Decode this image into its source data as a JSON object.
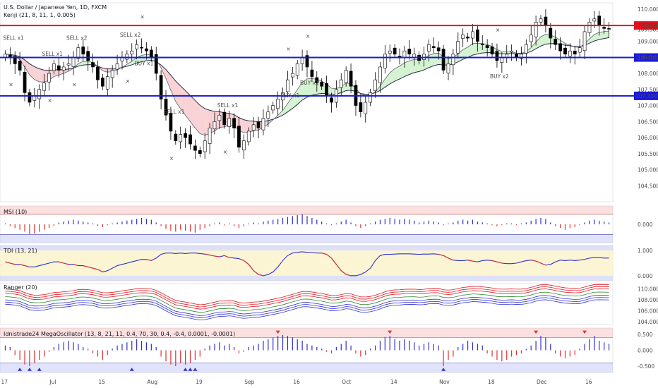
{
  "header": {
    "symbol_title": "U.S. Dollar / Japanese Yen, 1D, FXCM",
    "overlay_label": "Kenji (21, 8, 11, 1, 0.005)"
  },
  "colors": {
    "bull": "#ffffff",
    "bear": "#000000",
    "res_line": "#e0141e",
    "sup_line": "#1a19d6",
    "cloud_bull": "#c9f0c5",
    "cloud_bear": "#f6c7c9",
    "cloud_neutral": "#c8cdf0",
    "sell": "#e0141e",
    "buy": "#3a45c8"
  },
  "chart_data": [
    {
      "type": "candlestick",
      "title": "U.S. Dollar / Japanese Yen, 1D, FXCM",
      "ylim": [
        104.0,
        110.2
      ],
      "yticks": [
        "110.000",
        "109.500",
        "109.000",
        "108.500",
        "108.000",
        "107.500",
        "107.000",
        "106.500",
        "106.000",
        "105.500",
        "105.000",
        "104.500"
      ],
      "xticks": [
        {
          "i": 0,
          "label": "17"
        },
        {
          "i": 10,
          "label": "Jul"
        },
        {
          "i": 20,
          "label": "15"
        },
        {
          "i": 30,
          "label": "Aug"
        },
        {
          "i": 40,
          "label": "19"
        },
        {
          "i": 50,
          "label": "Sep"
        },
        {
          "i": 60,
          "label": "16"
        },
        {
          "i": 70,
          "label": "Oct"
        },
        {
          "i": 80,
          "label": "14"
        },
        {
          "i": 90,
          "label": "Nov"
        },
        {
          "i": 100,
          "label": "18"
        },
        {
          "i": 110,
          "label": "Dec"
        },
        {
          "i": 120,
          "label": "16"
        }
      ],
      "horizontal_levels": [
        {
          "value": 109.494,
          "label": "109.494",
          "kind": "resistance"
        },
        {
          "value": 108.495,
          "label": "108.495",
          "kind": "support"
        },
        {
          "value": 107.3,
          "label": "107.300",
          "kind": "support"
        }
      ],
      "last_price_label": "109.383",
      "closes": [
        108.6,
        108.5,
        108.3,
        108.1,
        107.4,
        107.1,
        107.3,
        107.5,
        107.7,
        108.0,
        108.3,
        108.1,
        108.2,
        108.3,
        108.5,
        108.8,
        108.6,
        108.4,
        108.2,
        107.8,
        107.6,
        107.9,
        108.1,
        108.3,
        108.5,
        108.6,
        108.7,
        108.9,
        108.8,
        108.7,
        108.5,
        108.0,
        107.2,
        106.7,
        106.2,
        105.9,
        106.1,
        106.0,
        105.8,
        105.6,
        105.5,
        105.9,
        106.3,
        106.5,
        106.7,
        106.4,
        106.6,
        106.3,
        105.7,
        105.9,
        106.2,
        106.4,
        106.3,
        106.6,
        106.8,
        107.0,
        107.2,
        107.4,
        107.8,
        108.0,
        108.3,
        108.5,
        108.2,
        107.9,
        107.7,
        107.6,
        107.3,
        107.1,
        107.5,
        107.8,
        108.1,
        107.6,
        107.0,
        106.8,
        107.1,
        107.4,
        107.8,
        108.2,
        108.6,
        108.7,
        108.6,
        108.5,
        108.7,
        108.6,
        108.6,
        108.4,
        108.6,
        108.9,
        108.8,
        108.7,
        108.1,
        108.3,
        108.6,
        109.0,
        109.2,
        109.1,
        109.3,
        109.0,
        108.9,
        108.8,
        108.6,
        108.4,
        108.5,
        108.6,
        108.7,
        108.5,
        108.6,
        108.9,
        109.2,
        109.6,
        109.7,
        109.5,
        109.1,
        108.9,
        108.7,
        108.6,
        108.7,
        108.6,
        108.8,
        109.3,
        109.6,
        109.7,
        109.5,
        109.4,
        109.38
      ],
      "signals": [
        {
          "i": 1,
          "text": "SELL x1",
          "kind": "sell"
        },
        {
          "i": 14,
          "text": "SELL x2",
          "kind": "sell"
        },
        {
          "i": 9,
          "text": "SELL x1",
          "kind": "sell"
        },
        {
          "i": 25,
          "text": "SELL x2",
          "kind": "sell"
        },
        {
          "i": 34,
          "text": "SELL x1",
          "kind": "sell"
        },
        {
          "i": 45,
          "text": "SELL x1",
          "kind": "sell"
        },
        {
          "i": 28,
          "text": "BUY x1",
          "kind": "buy"
        },
        {
          "i": 58,
          "text": "BUY x1",
          "kind": "buy"
        },
        {
          "i": 62,
          "text": "BUY x1",
          "kind": "buy"
        },
        {
          "i": 101,
          "text": "BUY x2",
          "kind": "buy"
        }
      ]
    },
    {
      "type": "histogram",
      "title": "MSI (10)",
      "ylim": [
        -1,
        1
      ],
      "yticks": [
        "0.000"
      ],
      "values": [
        0.05,
        -0.1,
        -0.2,
        -0.3,
        -0.4,
        -0.55,
        -0.5,
        -0.4,
        -0.3,
        -0.2,
        -0.1,
        0.1,
        0.15,
        0.2,
        0.25,
        0.2,
        0.15,
        0.1,
        0.05,
        -0.1,
        -0.15,
        -0.05,
        0.05,
        0.1,
        0.15,
        0.2,
        0.25,
        0.3,
        0.35,
        0.3,
        0.25,
        0.1,
        -0.1,
        -0.25,
        -0.35,
        -0.4,
        -0.3,
        -0.35,
        -0.4,
        -0.45,
        -0.3,
        -0.2,
        -0.1,
        0.05,
        0.1,
        -0.05,
        0.05,
        -0.1,
        -0.2,
        -0.1,
        0.05,
        0.1,
        0.05,
        0.15,
        0.2,
        0.25,
        0.3,
        0.35,
        0.4,
        0.45,
        0.5,
        0.55,
        0.45,
        0.35,
        0.25,
        0.15,
        0.05,
        -0.05,
        0.05,
        0.15,
        0.25,
        0.1,
        -0.1,
        -0.2,
        -0.1,
        0.05,
        0.15,
        0.25,
        0.3,
        0.35,
        0.3,
        0.25,
        0.3,
        0.25,
        0.2,
        0.1,
        0.15,
        0.2,
        0.15,
        0.1,
        -0.05,
        0.05,
        0.1,
        0.2,
        0.25,
        0.2,
        0.25,
        0.15,
        0.1,
        0.05,
        -0.05,
        -0.1,
        -0.05,
        0.05,
        0.05,
        -0.05,
        0.05,
        0.1,
        0.2,
        0.3,
        0.35,
        0.3,
        0.1,
        -0.1,
        -0.2,
        -0.3,
        -0.2,
        -0.15,
        -0.05,
        0.1,
        0.2,
        0.25,
        0.2,
        0.15,
        0.1
      ]
    },
    {
      "type": "line",
      "title": "TDI (13, 21)",
      "ylim": [
        -0.2,
        1.2
      ],
      "yticks": [
        "1.000",
        "0.000"
      ],
      "values": [
        0.55,
        0.5,
        0.45,
        0.45,
        0.4,
        0.35,
        0.35,
        0.4,
        0.45,
        0.5,
        0.55,
        0.55,
        0.5,
        0.45,
        0.45,
        0.4,
        0.4,
        0.35,
        0.3,
        0.25,
        0.15,
        0.2,
        0.3,
        0.4,
        0.45,
        0.5,
        0.55,
        0.6,
        0.65,
        0.65,
        0.6,
        0.7,
        0.85,
        0.9,
        0.9,
        0.88,
        0.9,
        0.88,
        0.9,
        0.9,
        0.88,
        0.86,
        0.82,
        0.78,
        0.75,
        0.8,
        0.72,
        0.7,
        0.68,
        0.6,
        0.45,
        0.2,
        0.05,
        0.0,
        0.05,
        0.15,
        0.35,
        0.6,
        0.8,
        0.9,
        0.93,
        0.95,
        0.93,
        0.92,
        0.9,
        0.9,
        0.85,
        0.7,
        0.45,
        0.2,
        0.05,
        0.0,
        0.0,
        0.05,
        0.15,
        0.3,
        0.6,
        0.8,
        0.85,
        0.85,
        0.86,
        0.87,
        0.87,
        0.87,
        0.86,
        0.85,
        0.86,
        0.86,
        0.87,
        0.85,
        0.8,
        0.7,
        0.62,
        0.6,
        0.6,
        0.62,
        0.58,
        0.55,
        0.6,
        0.62,
        0.6,
        0.55,
        0.5,
        0.48,
        0.48,
        0.5,
        0.55,
        0.6,
        0.62,
        0.58,
        0.5,
        0.42,
        0.45,
        0.55,
        0.62,
        0.6,
        0.62,
        0.6,
        0.62,
        0.65,
        0.7,
        0.72,
        0.72,
        0.7,
        0.7
      ]
    },
    {
      "type": "line",
      "title": "Ranger (20)",
      "ylim": [
        103.5,
        111
      ],
      "yticks": [
        "110.000",
        "108.000",
        "106.000",
        "104.000"
      ],
      "note_series_from": "closes"
    },
    {
      "type": "histogram",
      "title": "Idnistrade24 MegaOscillator (13, 8, 21, 11, 0.4, 70, 30, 0.4, -0.4, 0.0001, -0.0001)",
      "ylim": [
        -0.7,
        0.7
      ],
      "yticks": [
        "0.500",
        "0.000",
        "-0.500"
      ],
      "values": [
        0.15,
        0.1,
        -0.15,
        -0.3,
        -0.45,
        -0.5,
        -0.4,
        -0.3,
        -0.2,
        -0.05,
        0.1,
        0.2,
        0.25,
        0.3,
        0.25,
        0.2,
        0.1,
        0.05,
        -0.1,
        -0.2,
        -0.3,
        -0.15,
        0.05,
        0.15,
        0.2,
        0.25,
        0.3,
        0.35,
        0.3,
        0.25,
        0.2,
        0.1,
        -0.2,
        -0.35,
        -0.45,
        -0.5,
        -0.4,
        -0.45,
        -0.4,
        -0.3,
        -0.2,
        0.05,
        0.15,
        0.2,
        0.25,
        0.15,
        0.2,
        0.1,
        -0.1,
        -0.05,
        0.1,
        0.15,
        0.2,
        0.3,
        0.35,
        0.4,
        0.45,
        0.48,
        0.45,
        0.4,
        0.35,
        0.3,
        0.2,
        0.15,
        0.1,
        0.05,
        -0.05,
        -0.1,
        0.1,
        0.2,
        0.3,
        0.15,
        -0.1,
        -0.2,
        -0.15,
        0.05,
        0.15,
        0.3,
        0.42,
        0.45,
        0.35,
        0.3,
        0.35,
        0.3,
        0.25,
        0.15,
        0.2,
        0.25,
        0.2,
        0.15,
        -0.5,
        -0.3,
        -0.2,
        0.1,
        0.2,
        0.3,
        0.25,
        0.2,
        0.15,
        -0.1,
        -0.2,
        -0.3,
        -0.35,
        -0.3,
        -0.2,
        -0.15,
        -0.1,
        0.05,
        0.15,
        0.3,
        0.45,
        0.4,
        0.2,
        -0.1,
        -0.2,
        -0.25,
        -0.2,
        -0.15,
        0.05,
        0.2,
        0.35,
        0.45,
        0.3,
        0.25,
        0.2
      ],
      "triangles_up": [
        3,
        5,
        7,
        26,
        37,
        38,
        39,
        90
      ],
      "triangles_down": [
        56,
        79,
        109,
        119
      ]
    }
  ]
}
